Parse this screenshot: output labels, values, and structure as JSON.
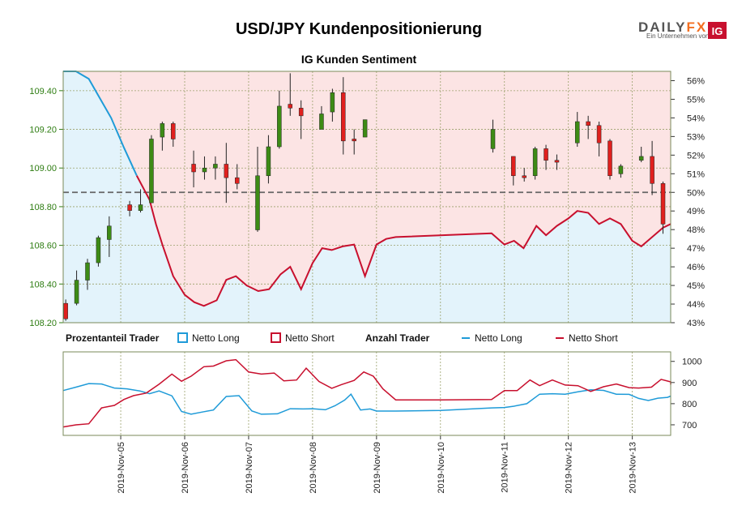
{
  "title": "USD/JPY Kundenpositionierung",
  "logo": {
    "brand": "DAILY",
    "brand_accent": "FX",
    "tagline": "Ein Unternehmen von",
    "badge": "IG"
  },
  "chart_data": {
    "type": "candlestick",
    "title": "IG Kunden Sentiment",
    "left_axis": {
      "ticks": [
        "108.20",
        "108.40",
        "108.60",
        "108.80",
        "109.00",
        "109.20",
        "109.40"
      ],
      "range": [
        108.2,
        109.5
      ]
    },
    "right_axis": {
      "ticks": [
        "43%",
        "44%",
        "45%",
        "46%",
        "47%",
        "48%",
        "49%",
        "50%",
        "51%",
        "52%",
        "53%",
        "54%",
        "55%",
        "56%"
      ],
      "range": [
        43,
        56.5
      ]
    },
    "x_labels": [
      "2019-Nov-05",
      "2019-Nov-06",
      "2019-Nov-07",
      "2019-Nov-08",
      "2019-Nov-09",
      "2019-Nov-10",
      "2019-Nov-11",
      "2019-Nov-12",
      "2019-Nov-13"
    ],
    "x_range": [
      4.1,
      13.6
    ],
    "x_label_positions": [
      5,
      6,
      7,
      8,
      9,
      10,
      11,
      12,
      13
    ],
    "candles": [
      [
        4.14,
        108.3,
        108.22,
        108.32,
        108.21
      ],
      [
        4.31,
        108.3,
        108.42,
        108.47,
        108.29
      ],
      [
        4.48,
        108.42,
        108.51,
        108.53,
        108.37
      ],
      [
        4.65,
        108.51,
        108.64,
        108.65,
        108.49
      ],
      [
        4.82,
        108.63,
        108.7,
        108.75,
        108.54
      ],
      [
        5.14,
        108.81,
        108.78,
        108.83,
        108.75
      ],
      [
        5.31,
        108.78,
        108.81,
        108.89,
        108.77
      ],
      [
        5.48,
        108.82,
        109.15,
        109.17,
        108.82
      ],
      [
        5.65,
        109.16,
        109.23,
        109.24,
        109.09
      ],
      [
        5.82,
        109.23,
        109.15,
        109.24,
        109.11
      ],
      [
        6.14,
        109.02,
        108.98,
        109.09,
        108.9
      ],
      [
        6.31,
        108.98,
        109.0,
        109.06,
        108.94
      ],
      [
        6.48,
        109.0,
        109.02,
        109.06,
        108.94
      ],
      [
        6.65,
        109.02,
        108.95,
        109.13,
        108.82
      ],
      [
        6.82,
        108.95,
        108.92,
        109.02,
        108.89
      ],
      [
        7.14,
        108.68,
        108.96,
        109.11,
        108.67
      ],
      [
        7.31,
        108.96,
        109.11,
        109.17,
        108.92
      ],
      [
        7.48,
        109.11,
        109.32,
        109.4,
        109.1
      ],
      [
        7.65,
        109.33,
        109.31,
        109.49,
        109.27
      ],
      [
        7.82,
        109.31,
        109.27,
        109.35,
        109.15
      ],
      [
        8.14,
        109.2,
        109.28,
        109.32,
        109.2
      ],
      [
        8.31,
        109.29,
        109.39,
        109.41,
        109.24
      ],
      [
        8.48,
        109.39,
        109.14,
        109.47,
        109.07
      ],
      [
        8.65,
        109.15,
        109.14,
        109.2,
        109.07
      ],
      [
        8.82,
        109.16,
        109.25,
        109.25,
        109.16
      ],
      [
        10.82,
        109.1,
        109.2,
        109.25,
        109.08
      ],
      [
        11.14,
        109.06,
        108.96,
        109.06,
        108.91
      ],
      [
        11.31,
        108.96,
        108.95,
        109.0,
        108.93
      ],
      [
        11.48,
        108.96,
        109.1,
        109.11,
        108.94
      ],
      [
        11.65,
        109.1,
        109.04,
        109.12,
        108.99
      ],
      [
        11.82,
        109.04,
        109.03,
        109.07,
        108.99
      ],
      [
        12.14,
        109.13,
        109.24,
        109.29,
        109.11
      ],
      [
        12.31,
        109.24,
        109.22,
        109.27,
        109.15
      ],
      [
        12.48,
        109.22,
        109.13,
        109.24,
        109.06
      ],
      [
        12.65,
        109.14,
        108.96,
        109.15,
        108.94
      ],
      [
        12.82,
        108.97,
        109.01,
        109.02,
        108.95
      ],
      [
        13.14,
        109.04,
        109.06,
        109.11,
        109.03
      ],
      [
        13.31,
        109.06,
        108.92,
        109.14,
        108.86
      ],
      [
        13.48,
        108.92,
        108.71,
        108.93,
        108.66
      ]
    ],
    "short_pct": [
      [
        4.1,
        56.8
      ],
      [
        4.3,
        56.6
      ],
      [
        4.5,
        56.1
      ],
      [
        4.65,
        55.2
      ],
      [
        4.85,
        54.0
      ],
      [
        5.05,
        52.4
      ],
      [
        5.25,
        50.9
      ],
      [
        5.45,
        49.6
      ],
      [
        5.55,
        48.3
      ],
      [
        5.65,
        47.2
      ],
      [
        5.82,
        45.5
      ],
      [
        6.0,
        44.5
      ],
      [
        6.15,
        44.1
      ],
      [
        6.3,
        43.9
      ],
      [
        6.5,
        44.2
      ],
      [
        6.65,
        45.3
      ],
      [
        6.8,
        45.5
      ],
      [
        6.97,
        45.0
      ],
      [
        7.15,
        44.7
      ],
      [
        7.32,
        44.8
      ],
      [
        7.5,
        45.6
      ],
      [
        7.65,
        46.0
      ],
      [
        7.82,
        44.8
      ],
      [
        8.0,
        46.2
      ],
      [
        8.15,
        47.0
      ],
      [
        8.3,
        46.9
      ],
      [
        8.47,
        47.1
      ],
      [
        8.65,
        47.2
      ],
      [
        8.82,
        45.5
      ],
      [
        9.0,
        47.2
      ],
      [
        9.15,
        47.5
      ],
      [
        9.3,
        47.6
      ],
      [
        10.8,
        47.8
      ],
      [
        11.0,
        47.2
      ],
      [
        11.15,
        47.4
      ],
      [
        11.3,
        47.0
      ],
      [
        11.5,
        48.2
      ],
      [
        11.65,
        47.7
      ],
      [
        11.82,
        48.2
      ],
      [
        12.0,
        48.6
      ],
      [
        12.14,
        49.0
      ],
      [
        12.31,
        48.9
      ],
      [
        12.48,
        48.3
      ],
      [
        12.65,
        48.6
      ],
      [
        12.82,
        48.3
      ],
      [
        13.0,
        47.4
      ],
      [
        13.14,
        47.1
      ],
      [
        13.31,
        47.6
      ],
      [
        13.48,
        48.1
      ],
      [
        13.6,
        48.3
      ]
    ],
    "mid_line_pct": 50,
    "counts_axis": {
      "ticks": [
        "700",
        "800",
        "900",
        "1000"
      ],
      "range": [
        650,
        1045
      ]
    },
    "counts_long": [
      [
        4.05,
        862
      ],
      [
        4.3,
        878
      ],
      [
        4.5,
        895
      ],
      [
        4.7,
        893
      ],
      [
        4.9,
        874
      ],
      [
        5.1,
        870
      ],
      [
        5.3,
        860
      ],
      [
        5.45,
        847
      ],
      [
        5.6,
        860
      ],
      [
        5.8,
        837
      ],
      [
        5.95,
        763
      ],
      [
        6.1,
        750
      ],
      [
        6.3,
        762
      ],
      [
        6.45,
        770
      ],
      [
        6.65,
        834
      ],
      [
        6.85,
        838
      ],
      [
        7.05,
        766
      ],
      [
        7.2,
        750
      ],
      [
        7.45,
        752
      ],
      [
        7.65,
        776
      ],
      [
        7.85,
        775
      ],
      [
        8.0,
        776
      ],
      [
        8.2,
        771
      ],
      [
        8.35,
        790
      ],
      [
        8.5,
        817
      ],
      [
        8.6,
        845
      ],
      [
        8.75,
        770
      ],
      [
        8.9,
        775
      ],
      [
        9.0,
        765
      ],
      [
        9.3,
        765
      ],
      [
        10.0,
        768
      ],
      [
        10.8,
        780
      ],
      [
        11.0,
        782
      ],
      [
        11.15,
        788
      ],
      [
        11.35,
        800
      ],
      [
        11.55,
        845
      ],
      [
        11.75,
        847
      ],
      [
        11.95,
        845
      ],
      [
        12.15,
        856
      ],
      [
        12.35,
        866
      ],
      [
        12.55,
        863
      ],
      [
        12.75,
        845
      ],
      [
        12.95,
        844
      ],
      [
        13.1,
        825
      ],
      [
        13.25,
        815
      ],
      [
        13.4,
        826
      ],
      [
        13.55,
        830
      ],
      [
        13.65,
        836
      ]
    ],
    "counts_short": [
      [
        4.05,
        690
      ],
      [
        4.3,
        700
      ],
      [
        4.5,
        705
      ],
      [
        4.7,
        780
      ],
      [
        4.9,
        792
      ],
      [
        5.05,
        820
      ],
      [
        5.2,
        838
      ],
      [
        5.4,
        850
      ],
      [
        5.6,
        892
      ],
      [
        5.8,
        940
      ],
      [
        5.95,
        906
      ],
      [
        6.1,
        930
      ],
      [
        6.3,
        975
      ],
      [
        6.45,
        978
      ],
      [
        6.65,
        1003
      ],
      [
        6.8,
        1008
      ],
      [
        7.0,
        950
      ],
      [
        7.2,
        940
      ],
      [
        7.4,
        945
      ],
      [
        7.55,
        908
      ],
      [
        7.75,
        912
      ],
      [
        7.9,
        968
      ],
      [
        8.1,
        905
      ],
      [
        8.3,
        873
      ],
      [
        8.45,
        890
      ],
      [
        8.65,
        910
      ],
      [
        8.8,
        950
      ],
      [
        8.95,
        930
      ],
      [
        9.1,
        870
      ],
      [
        9.3,
        818
      ],
      [
        10.0,
        818
      ],
      [
        10.8,
        820
      ],
      [
        11.0,
        862
      ],
      [
        11.2,
        862
      ],
      [
        11.4,
        912
      ],
      [
        11.55,
        885
      ],
      [
        11.75,
        912
      ],
      [
        11.95,
        888
      ],
      [
        12.15,
        885
      ],
      [
        12.35,
        858
      ],
      [
        12.55,
        880
      ],
      [
        12.75,
        893
      ],
      [
        12.95,
        876
      ],
      [
        13.1,
        874
      ],
      [
        13.3,
        878
      ],
      [
        13.45,
        915
      ],
      [
        13.6,
        903
      ],
      [
        13.7,
        890
      ]
    ]
  },
  "legend": {
    "pct_heading": "Prozentanteil Trader",
    "pct_long": "Netto Long",
    "pct_short": "Netto Short",
    "count_heading": "Anzahl Trader",
    "count_long": "Netto Long",
    "count_short": "Netto Short"
  },
  "colors": {
    "long": "#1f9bd8",
    "short": "#c8102e",
    "short_fill": "#fce4e4",
    "long_fill": "#e3f3fb",
    "candle_up": "#3d8b15",
    "candle_down": "#e0201e",
    "axis_green": "#2e7d12",
    "grid": "#9aa06a"
  }
}
